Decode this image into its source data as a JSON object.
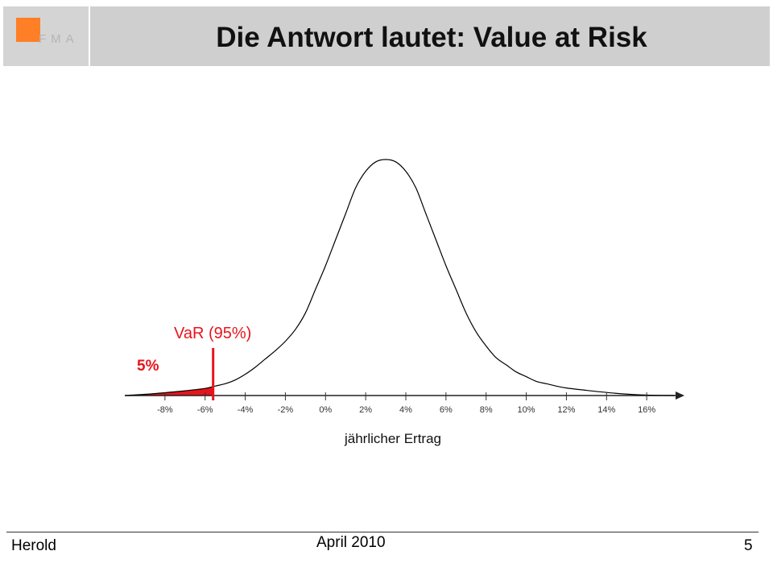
{
  "slide": {
    "title": "Die Antwort lautet: Value at Risk",
    "logo_text": "FMA",
    "footer_author": "Herold",
    "footer_date": "April 2010",
    "page_number": "5"
  },
  "colors": {
    "header_bg": "#cfcfcf",
    "logo_accent": "#ff7f27",
    "var_red": "#e8141b",
    "curve": "#000000"
  },
  "chart_data": {
    "type": "area",
    "title": "",
    "xlabel": "jährlicher Ertrag",
    "ylabel": "",
    "x_tick_labels": [
      "-8%",
      "-6%",
      "-4%",
      "-2%",
      "0%",
      "2%",
      "4%",
      "6%",
      "8%",
      "10%",
      "12%",
      "14%",
      "16%"
    ],
    "x_ticks": [
      -8,
      -6,
      -4,
      -2,
      0,
      2,
      4,
      6,
      8,
      10,
      12,
      14,
      16
    ],
    "xlim": [
      -10,
      17.8
    ],
    "ylim": [
      0,
      1
    ],
    "grid": false,
    "y_axis_visible": false,
    "series": [
      {
        "x": [
          -10,
          -9,
          -8,
          -7,
          -6,
          -5.5,
          -5,
          -4.5,
          -4,
          -3.5,
          -3,
          -2.5,
          -2,
          -1.5,
          -1,
          -0.5,
          0,
          0.5,
          1,
          1.5,
          2,
          2.5,
          3,
          3.5,
          4,
          4.5,
          5,
          5.5,
          6,
          6.5,
          7,
          7.5,
          8,
          8.5,
          9,
          9.5,
          10,
          10.5,
          11,
          11.5,
          12,
          13,
          14,
          15,
          16,
          17.4
        ],
        "y": [
          0.0,
          0.005,
          0.012,
          0.02,
          0.03,
          0.04,
          0.05,
          0.066,
          0.09,
          0.12,
          0.155,
          0.19,
          0.23,
          0.28,
          0.35,
          0.45,
          0.55,
          0.66,
          0.77,
          0.88,
          0.95,
          0.99,
          1.0,
          0.99,
          0.95,
          0.88,
          0.77,
          0.66,
          0.55,
          0.45,
          0.35,
          0.27,
          0.21,
          0.16,
          0.13,
          0.1,
          0.08,
          0.06,
          0.05,
          0.04,
          0.032,
          0.022,
          0.013,
          0.006,
          0.002,
          0.0
        ]
      }
    ],
    "annotations": {
      "var_label": "VaR (95%)",
      "tail_label": "5%",
      "var_x": -5.6
    }
  }
}
